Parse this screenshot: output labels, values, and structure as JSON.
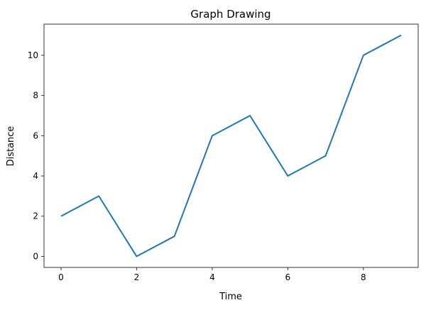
{
  "chart_data": {
    "type": "line",
    "title": "Graph Drawing",
    "xlabel": "Time",
    "ylabel": "Distance",
    "x": [
      0,
      1,
      2,
      3,
      4,
      5,
      6,
      7,
      8,
      9
    ],
    "series": [
      {
        "values": [
          2,
          3,
          0,
          1,
          6,
          7,
          4,
          5,
          10,
          11
        ],
        "color": "#1f77b4"
      }
    ],
    "xticks": [
      "0",
      "2",
      "4",
      "6",
      "8"
    ],
    "yticks": [
      "0",
      "2",
      "4",
      "6",
      "8",
      "10"
    ],
    "xlim": [
      -0.45,
      9.45
    ],
    "ylim": [
      -0.55,
      11.55
    ],
    "grid": false,
    "legend": null
  }
}
